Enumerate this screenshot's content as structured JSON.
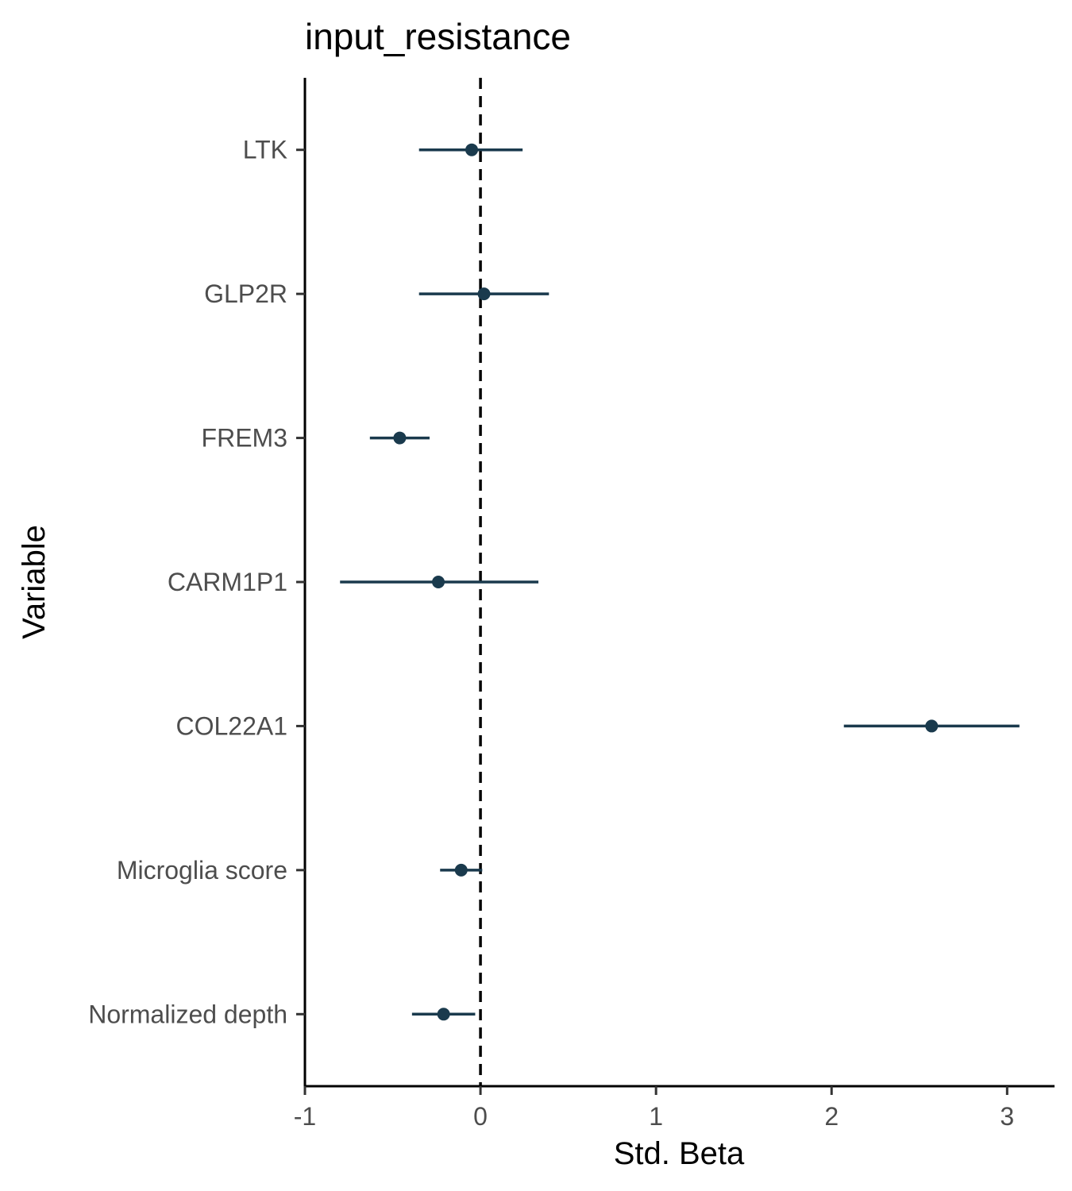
{
  "chart_data": {
    "type": "forest",
    "title": "input_resistance",
    "xlabel": "Std. Beta",
    "ylabel": "Variable",
    "xlim": [
      -1,
      3.27
    ],
    "xticks": [
      -1,
      0,
      1,
      2,
      3
    ],
    "xtick_labels": [
      "-1",
      "0",
      "1",
      "2",
      "3"
    ],
    "reference_line": 0,
    "grid": false,
    "color": "#1a3a4d",
    "categories": [
      "LTK",
      "GLP2R",
      "FREM3",
      "CARM1P1",
      "COL22A1",
      "Microglia score",
      "Normalized depth"
    ],
    "estimates": [
      -0.05,
      0.02,
      -0.46,
      -0.24,
      2.57,
      -0.11,
      -0.21
    ],
    "lower": [
      -0.35,
      -0.35,
      -0.63,
      -0.8,
      2.07,
      -0.23,
      -0.39
    ],
    "upper": [
      0.24,
      0.39,
      -0.29,
      0.33,
      3.07,
      0.01,
      -0.03
    ]
  }
}
